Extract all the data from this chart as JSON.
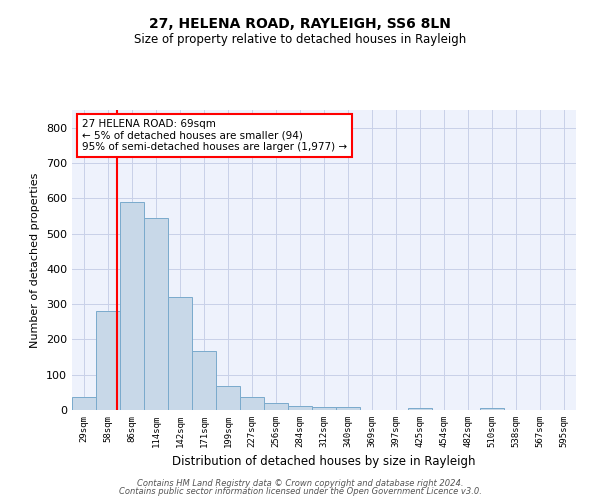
{
  "title1": "27, HELENA ROAD, RAYLEIGH, SS6 8LN",
  "title2": "Size of property relative to detached houses in Rayleigh",
  "xlabel": "Distribution of detached houses by size in Rayleigh",
  "ylabel": "Number of detached properties",
  "bar_labels": [
    "29sqm",
    "58sqm",
    "86sqm",
    "114sqm",
    "142sqm",
    "171sqm",
    "199sqm",
    "227sqm",
    "256sqm",
    "284sqm",
    "312sqm",
    "340sqm",
    "369sqm",
    "397sqm",
    "425sqm",
    "454sqm",
    "482sqm",
    "510sqm",
    "538sqm",
    "567sqm",
    "595sqm"
  ],
  "bar_values": [
    37,
    280,
    590,
    545,
    320,
    167,
    68,
    37,
    20,
    10,
    9,
    9,
    0,
    0,
    7,
    0,
    0,
    7,
    0,
    0,
    0
  ],
  "bar_color": "#c8d8e8",
  "bar_edge_color": "#7aaacc",
  "annotation_text": "27 HELENA ROAD: 69sqm\n← 5% of detached houses are smaller (94)\n95% of semi-detached houses are larger (1,977) →",
  "annotation_box_color": "white",
  "annotation_box_edge": "red",
  "vline_color": "red",
  "ylim": [
    0,
    850
  ],
  "yticks": [
    0,
    100,
    200,
    300,
    400,
    500,
    600,
    700,
    800
  ],
  "footer1": "Contains HM Land Registry data © Crown copyright and database right 2024.",
  "footer2": "Contains public sector information licensed under the Open Government Licence v3.0.",
  "bg_color": "#eef2fc",
  "grid_color": "#c8d0e8"
}
